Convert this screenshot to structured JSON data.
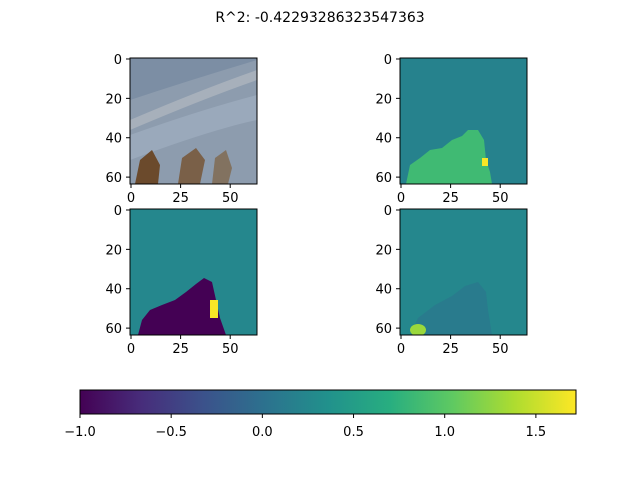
{
  "title": "R^2: -0.42293286323547363",
  "chart_data": {
    "type": "heatmap",
    "title": "R^2: -0.42293286323547363",
    "panels": [
      {
        "name": "input-image",
        "kind": "photo",
        "xlim": [
          0,
          63
        ],
        "ylim": [
          0,
          63
        ],
        "xticks": [
          0,
          25,
          50
        ],
        "yticks": [
          0,
          20,
          40,
          60
        ]
      },
      {
        "name": "target-heatmap",
        "kind": "heatmap",
        "xlim": [
          0,
          63
        ],
        "ylim": [
          0,
          63
        ],
        "xticks": [
          0,
          25,
          50
        ],
        "yticks": [
          0,
          20,
          40,
          60
        ],
        "background_value": 0.2,
        "region_value": 0.85,
        "hotspot_value": 1.7
      },
      {
        "name": "prediction-heatmap",
        "kind": "heatmap",
        "xlim": [
          0,
          63
        ],
        "ylim": [
          0,
          63
        ],
        "xticks": [
          0,
          25,
          50
        ],
        "yticks": [
          0,
          20,
          40,
          60
        ],
        "background_value": 0.25,
        "region_value": -1.0,
        "hotspot_value": 1.7
      },
      {
        "name": "difference-heatmap",
        "kind": "heatmap",
        "xlim": [
          0,
          63
        ],
        "ylim": [
          0,
          63
        ],
        "xticks": [
          0,
          25,
          50
        ],
        "yticks": [
          0,
          20,
          40,
          60
        ],
        "background_value": 0.25,
        "region_value": 0.12,
        "hotspot_value": 1.3
      }
    ],
    "colorbar": {
      "colormap": "viridis",
      "range": [
        -1.0,
        1.72
      ],
      "ticks": [
        -1.0,
        -0.5,
        0.0,
        0.5,
        1.0,
        1.5
      ],
      "tick_labels": [
        "−1.0",
        "−0.5",
        "0.0",
        "0.5",
        "1.0",
        "1.5"
      ]
    }
  }
}
